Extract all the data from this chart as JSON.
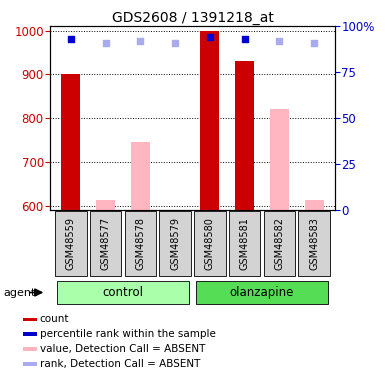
{
  "title": "GDS2608 / 1391218_at",
  "samples": [
    "GSM48559",
    "GSM48577",
    "GSM48578",
    "GSM48579",
    "GSM48580",
    "GSM48581",
    "GSM48582",
    "GSM48583"
  ],
  "group_colors": [
    "#aaffaa",
    "#55dd55"
  ],
  "bar_color_present": "#CC0000",
  "bar_color_absent": "#FFB6C1",
  "dot_color_present": "#0000CC",
  "dot_color_absent": "#aaaaee",
  "count_values": [
    900,
    null,
    null,
    null,
    1000,
    930,
    null,
    null
  ],
  "count_absent_values": [
    null,
    612,
    745,
    null,
    null,
    null,
    820,
    612
  ],
  "percentile_present": [
    93,
    null,
    null,
    null,
    94,
    93,
    null,
    null
  ],
  "percentile_absent": [
    null,
    91,
    92,
    91,
    null,
    null,
    92,
    91
  ],
  "ylim_left": [
    590,
    1010
  ],
  "ylim_right": [
    0,
    100
  ],
  "yticks_left": [
    600,
    700,
    800,
    900,
    1000
  ],
  "yticks_right": [
    0,
    25,
    50,
    75,
    100
  ],
  "ylabel_left_color": "#CC0000",
  "ylabel_right_color": "#0000CC",
  "legend_items": [
    {
      "color": "#CC0000",
      "label": "count",
      "marker": "square"
    },
    {
      "color": "#0000CC",
      "label": "percentile rank within the sample",
      "marker": "square"
    },
    {
      "color": "#FFB6C1",
      "label": "value, Detection Call = ABSENT",
      "marker": "square"
    },
    {
      "color": "#aaaaee",
      "label": "rank, Detection Call = ABSENT",
      "marker": "square"
    }
  ],
  "figsize": [
    3.85,
    3.75
  ],
  "dpi": 100
}
